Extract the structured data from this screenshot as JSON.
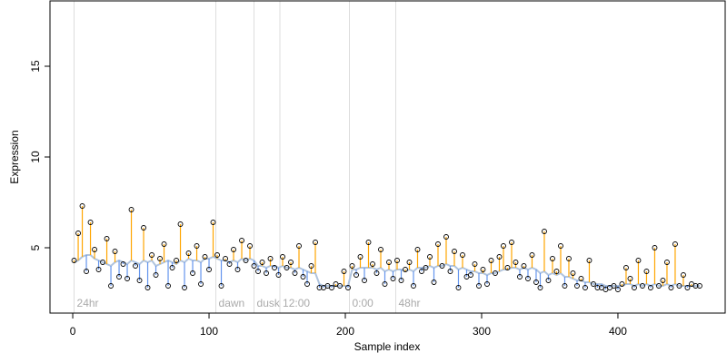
{
  "chart_data": {
    "type": "scatter",
    "xlabel": "Sample index",
    "ylabel": "Expression",
    "xlim": [
      -16.7,
      478.7
    ],
    "ylim": [
      1.4,
      18.6
    ],
    "xticks": [
      0,
      100,
      200,
      300,
      400
    ],
    "yticks": [
      5,
      10,
      15
    ],
    "above_color": "#ffa500",
    "below_color": "#6495ed",
    "fit_color": "#b0c4de",
    "annotations": [
      {
        "text": "24hr",
        "x": 1
      },
      {
        "text": "dawn",
        "x": 105
      },
      {
        "text": "dusk",
        "x": 133
      },
      {
        "text": "12:00",
        "x": 152
      },
      {
        "text": "0:00",
        "x": 203
      },
      {
        "text": "48hr",
        "x": 237
      }
    ],
    "x": [
      1,
      4,
      7,
      10,
      13,
      16,
      19,
      22,
      25,
      28,
      31,
      34,
      37,
      40,
      43,
      46,
      49,
      52,
      55,
      58,
      61,
      64,
      67,
      70,
      73,
      76,
      79,
      82,
      85,
      88,
      91,
      94,
      97,
      100,
      103,
      106,
      109,
      112,
      115,
      118,
      121,
      124,
      127,
      130,
      133,
      136,
      139,
      142,
      145,
      148,
      151,
      154,
      157,
      160,
      163,
      166,
      169,
      172,
      175,
      178,
      181,
      184,
      187,
      190,
      193,
      196,
      199,
      202,
      205,
      208,
      211,
      214,
      217,
      220,
      223,
      226,
      229,
      232,
      235,
      238,
      241,
      244,
      247,
      250,
      253,
      256,
      259,
      262,
      265,
      268,
      271,
      274,
      277,
      280,
      283,
      286,
      289,
      292,
      295,
      298,
      301,
      304,
      307,
      310,
      313,
      316,
      319,
      322,
      325,
      328,
      331,
      334,
      337,
      340,
      343,
      346,
      349,
      352,
      355,
      358,
      361,
      364,
      367,
      370,
      373,
      376,
      379,
      382,
      385,
      388,
      391,
      394,
      397,
      400,
      403,
      406,
      409,
      412,
      415,
      418,
      421,
      424,
      427,
      430,
      433,
      436,
      439,
      442,
      445,
      448,
      451,
      454,
      457,
      460
    ],
    "values": [
      4.3,
      5.8,
      7.3,
      3.7,
      6.4,
      4.9,
      3.8,
      4.2,
      5.5,
      2.9,
      4.8,
      3.4,
      4.1,
      3.3,
      7.1,
      4.0,
      3.2,
      6.1,
      2.8,
      4.6,
      3.5,
      4.4,
      5.2,
      2.9,
      3.9,
      4.3,
      6.3,
      2.8,
      4.7,
      3.6,
      5.1,
      3.0,
      4.5,
      3.8,
      6.4,
      4.6,
      2.9,
      4.4,
      4.1,
      4.9,
      3.8,
      5.4,
      4.3,
      5.1,
      4.0,
      3.7,
      4.2,
      3.6,
      4.4,
      3.9,
      3.5,
      4.5,
      3.9,
      4.2,
      3.6,
      5.1,
      3.4,
      3.0,
      4.0,
      5.3,
      2.8,
      2.8,
      2.9,
      2.8,
      3.0,
      2.9,
      3.7,
      2.8,
      4.0,
      3.5,
      4.5,
      3.2,
      5.3,
      4.1,
      3.6,
      4.9,
      3.0,
      4.2,
      3.3,
      4.3,
      3.2,
      3.8,
      4.2,
      2.9,
      4.9,
      3.7,
      3.9,
      4.5,
      3.1,
      5.2,
      4.0,
      5.6,
      3.7,
      4.8,
      2.8,
      4.6,
      3.4,
      3.5,
      4.1,
      2.9,
      3.8,
      3.0,
      4.3,
      3.6,
      4.5,
      5.1,
      3.9,
      5.3,
      4.2,
      3.4,
      4.0,
      3.3,
      4.6,
      3.1,
      2.8,
      5.9,
      3.2,
      4.4,
      3.7,
      5.1,
      2.9,
      4.4,
      3.6,
      2.9,
      3.3,
      2.8,
      4.3,
      3.0,
      2.8,
      2.8,
      2.7,
      2.8,
      2.9,
      2.7,
      3.0,
      3.9,
      3.3,
      2.8,
      4.3,
      2.9,
      3.7,
      2.8,
      5.0,
      2.9,
      3.2,
      4.2,
      2.8,
      5.2,
      2.9,
      3.5,
      2.8,
      3.0,
      2.9,
      2.9
    ],
    "fit": [
      4.2,
      4.3,
      4.5,
      4.6,
      4.6,
      4.4,
      4.3,
      4.2,
      4.1,
      4.0,
      4.2,
      4.3,
      4.2,
      4.1,
      4.3,
      4.2,
      4.1,
      4.3,
      4.2,
      4.3,
      4.0,
      4.1,
      4.2,
      4.3,
      4.2,
      4.1,
      4.3,
      4.2,
      4.4,
      4.3,
      4.3,
      4.2,
      4.4,
      4.4,
      4.5,
      4.4,
      4.3,
      4.3,
      4.2,
      4.3,
      4.2,
      4.4,
      4.3,
      4.4,
      4.3,
      4.0,
      4.0,
      3.9,
      4.0,
      4.0,
      3.9,
      4.0,
      3.9,
      3.9,
      3.8,
      3.9,
      3.8,
      3.7,
      3.6,
      3.6,
      3.0,
      2.9,
      2.9,
      2.9,
      2.9,
      2.9,
      2.9,
      2.9,
      3.8,
      3.8,
      3.9,
      3.9,
      3.9,
      3.9,
      3.8,
      3.9,
      3.7,
      3.8,
      3.7,
      3.8,
      3.8,
      3.7,
      3.8,
      3.7,
      3.9,
      3.9,
      3.9,
      4.0,
      3.9,
      4.0,
      4.0,
      4.1,
      4.0,
      4.0,
      3.8,
      3.9,
      3.8,
      3.7,
      3.7,
      3.6,
      3.6,
      3.5,
      3.6,
      3.6,
      3.7,
      3.8,
      3.8,
      3.9,
      3.9,
      3.8,
      3.9,
      3.8,
      3.9,
      3.8,
      3.6,
      3.7,
      3.5,
      3.6,
      3.5,
      3.6,
      3.4,
      3.4,
      3.3,
      3.2,
      3.2,
      3.1,
      3.1,
      3.0,
      3.0,
      3.0,
      2.9,
      2.9,
      2.9,
      2.9,
      2.9,
      3.0,
      3.0,
      2.9,
      3.0,
      2.9,
      3.0,
      2.9,
      3.0,
      2.9,
      2.9,
      3.0,
      2.9,
      3.0,
      2.9,
      2.9,
      2.9,
      2.9,
      2.9,
      2.9
    ]
  }
}
